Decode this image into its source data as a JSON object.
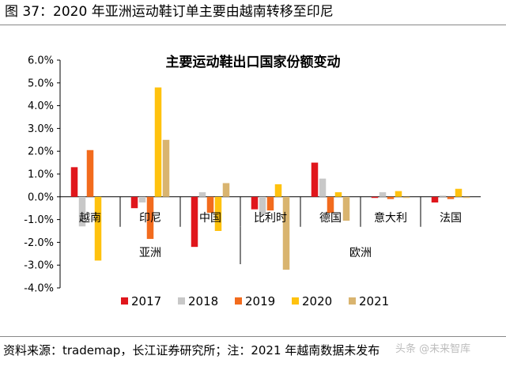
{
  "figure_caption": "图 37：2020 年亚洲运动鞋订单主要由越南转移至印尼",
  "source_note": "资料来源：trademap，长江证券研究所；注：2021 年越南数据未发布",
  "watermark": "头条 @未来智库",
  "chart_data": {
    "type": "bar",
    "title": "主要运动鞋出口国家份额变动",
    "xlabel": "",
    "ylabel": "",
    "ylim": [
      -4.0,
      6.0
    ],
    "yticks": [
      "6.0%",
      "5.0%",
      "4.0%",
      "3.0%",
      "2.0%",
      "1.0%",
      "0.0%",
      "-1.0%",
      "-2.0%",
      "-3.0%",
      "-4.0%"
    ],
    "grid": false,
    "legend_position": "bottom",
    "categories": [
      "越南",
      "印尼",
      "中国",
      "比利时",
      "德国",
      "意大利",
      "法国"
    ],
    "groups": [
      {
        "name": "亚洲",
        "categories": [
          "越南",
          "印尼",
          "中国"
        ]
      },
      {
        "name": "欧洲",
        "categories": [
          "比利时",
          "德国",
          "意大利",
          "法国"
        ]
      }
    ],
    "series": [
      {
        "name": "2017",
        "color": "#e0161c",
        "values": [
          1.3,
          -0.5,
          -2.2,
          -0.55,
          1.5,
          -0.05,
          -0.25
        ]
      },
      {
        "name": "2018",
        "color": "#c8c8c8",
        "values": [
          -1.3,
          -0.25,
          0.2,
          -0.8,
          0.8,
          0.2,
          0.05
        ]
      },
      {
        "name": "2019",
        "color": "#f26b1d",
        "values": [
          2.05,
          -1.85,
          -0.7,
          -0.6,
          -0.7,
          -0.1,
          -0.1
        ]
      },
      {
        "name": "2020",
        "color": "#ffc20e",
        "values": [
          -2.8,
          4.8,
          -1.5,
          0.55,
          0.2,
          0.25,
          0.35
        ]
      },
      {
        "name": "2021",
        "color": "#d9b46f",
        "values": [
          null,
          2.5,
          0.6,
          -3.2,
          -1.05,
          -0.05,
          -0.05
        ]
      }
    ]
  }
}
